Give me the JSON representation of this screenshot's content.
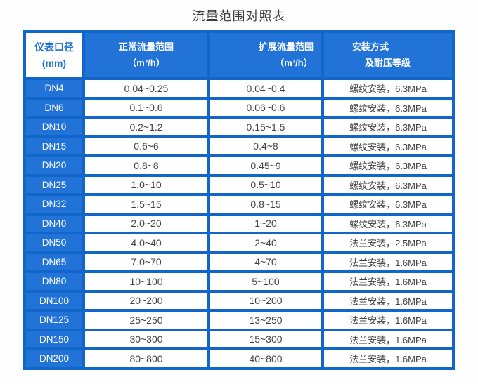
{
  "page": {
    "title": "流量范围对照表"
  },
  "colors": {
    "cell_blue": "#2173d8",
    "grid_blue": "#1265c9",
    "header_text": "#ffffff",
    "corner_header_text": "#1e6fd2",
    "data_text": "#424242",
    "title_text": "#3c3c3c",
    "page_background": "#fefefe"
  },
  "table": {
    "columns": [
      {
        "line1": "仪表口径",
        "line2": "(mm)"
      },
      {
        "line1": "正常流量范围",
        "line2": "（m³/h）"
      },
      {
        "line1": "扩展流量范围",
        "line2": "（m³/h）"
      },
      {
        "line1": "安装方式",
        "line2": "及耐压等级"
      }
    ],
    "rows": [
      {
        "dn": "DN4",
        "normal": "0.04~0.25",
        "extended": "0.04~0.4",
        "install": "螺纹安装，6.3MPa"
      },
      {
        "dn": "DN6",
        "normal": "0.1~0.6",
        "extended": "0.06~0.6",
        "install": "螺纹安装，6.3MPa"
      },
      {
        "dn": "DN10",
        "normal": "0.2~1.2",
        "extended": "0.15~1.5",
        "install": "螺纹安装，6.3MPa"
      },
      {
        "dn": "DN15",
        "normal": "0.6~6",
        "extended": "0.4~8",
        "install": "螺纹安装，6.3MPa"
      },
      {
        "dn": "DN20",
        "normal": "0.8~8",
        "extended": "0.45~9",
        "install": "螺纹安装，6.3MPa"
      },
      {
        "dn": "DN25",
        "normal": "1.0~10",
        "extended": "0.5~10",
        "install": "螺纹安装，6.3MPa"
      },
      {
        "dn": "DN32",
        "normal": "1.5~15",
        "extended": "0.8~15",
        "install": "螺纹安装，6.3MPa"
      },
      {
        "dn": "DN40",
        "normal": "2.0~20",
        "extended": "1~20",
        "install": "螺纹安装，6.3MPa"
      },
      {
        "dn": "DN50",
        "normal": "4.0~40",
        "extended": "2~40",
        "install": "法兰安装，2.5MPa"
      },
      {
        "dn": "DN65",
        "normal": "7.0~70",
        "extended": "4~70",
        "install": "法兰安装，1.6MPa"
      },
      {
        "dn": "DN80",
        "normal": "10~100",
        "extended": "5~100",
        "install": "法兰安装，1.6MPa"
      },
      {
        "dn": "DN100",
        "normal": "20~200",
        "extended": "10~200",
        "install": "法兰安装，1.6MPa"
      },
      {
        "dn": "DN125",
        "normal": "25~250",
        "extended": "13~250",
        "install": "法兰安装，1.6MPa"
      },
      {
        "dn": "DN150",
        "normal": "30~300",
        "extended": "15~300",
        "install": "法兰安装，1.6MPa"
      },
      {
        "dn": "DN200",
        "normal": "80~800",
        "extended": "40~800",
        "install": "法兰安装，1.6MPa"
      }
    ]
  },
  "chart_data": {
    "type": "table",
    "title": "流量范围对照表",
    "columns": [
      "仪表口径 (mm)",
      "正常流量范围（m³/h）",
      "扩展流量范围（m³/h）",
      "安装方式及耐压等级"
    ],
    "rows": [
      [
        "DN4",
        "0.04~0.25",
        "0.04~0.4",
        "螺纹安装，6.3MPa"
      ],
      [
        "DN6",
        "0.1~0.6",
        "0.06~0.6",
        "螺纹安装，6.3MPa"
      ],
      [
        "DN10",
        "0.2~1.2",
        "0.15~1.5",
        "螺纹安装，6.3MPa"
      ],
      [
        "DN15",
        "0.6~6",
        "0.4~8",
        "螺纹安装，6.3MPa"
      ],
      [
        "DN20",
        "0.8~8",
        "0.45~9",
        "螺纹安装，6.3MPa"
      ],
      [
        "DN25",
        "1.0~10",
        "0.5~10",
        "螺纹安装，6.3MPa"
      ],
      [
        "DN32",
        "1.5~15",
        "0.8~15",
        "螺纹安装，6.3MPa"
      ],
      [
        "DN40",
        "2.0~20",
        "1~20",
        "螺纹安装，6.3MPa"
      ],
      [
        "DN50",
        "4.0~40",
        "2~40",
        "法兰安装，2.5MPa"
      ],
      [
        "DN65",
        "7.0~70",
        "4~70",
        "法兰安装，1.6MPa"
      ],
      [
        "DN80",
        "10~100",
        "5~100",
        "法兰安装，1.6MPa"
      ],
      [
        "DN100",
        "20~200",
        "10~200",
        "法兰安装，1.6MPa"
      ],
      [
        "DN125",
        "25~250",
        "13~250",
        "法兰安装，1.6MPa"
      ],
      [
        "DN150",
        "30~300",
        "15~300",
        "法兰安装，1.6MPa"
      ],
      [
        "DN200",
        "80~800",
        "40~800",
        "法兰安装，1.6MPa"
      ]
    ]
  }
}
